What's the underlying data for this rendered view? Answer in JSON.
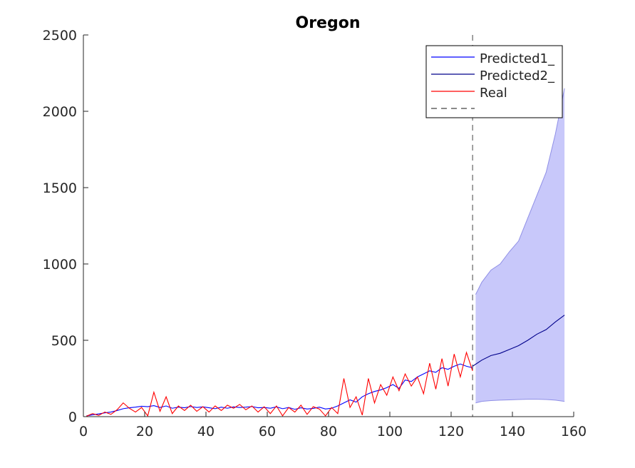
{
  "chart_data": {
    "type": "line",
    "title": "Oregon",
    "xlabel": "",
    "ylabel": "",
    "xlim": [
      0,
      160
    ],
    "ylim": [
      0,
      2500
    ],
    "xticks": [
      0,
      20,
      40,
      60,
      80,
      100,
      120,
      140,
      160
    ],
    "yticks": [
      0,
      500,
      1000,
      1500,
      2000,
      2500
    ],
    "grid": false,
    "legend_position": "top-right",
    "forecast_start_x": 127,
    "colors": {
      "predicted1": "#0000ff",
      "predicted2": "#00008b",
      "real": "#ff0000",
      "band_fill": "#c8c8fa",
      "band_edge": "#8f8fe6",
      "divider": "#444444"
    },
    "series": [
      {
        "name": "Predicted1_",
        "x": [
          1,
          3,
          5,
          7,
          9,
          11,
          13,
          15,
          17,
          19,
          21,
          23,
          25,
          27,
          29,
          31,
          33,
          35,
          37,
          39,
          41,
          43,
          45,
          47,
          49,
          51,
          53,
          55,
          57,
          59,
          61,
          63,
          65,
          67,
          69,
          71,
          73,
          75,
          77,
          79,
          81,
          83,
          85,
          87,
          89,
          91,
          93,
          95,
          97,
          99,
          101,
          103,
          105,
          107,
          109,
          111,
          113,
          115,
          117,
          119,
          121,
          123,
          125,
          127
        ],
        "y": [
          5,
          12,
          18,
          25,
          30,
          40,
          52,
          58,
          62,
          68,
          65,
          72,
          60,
          70,
          55,
          62,
          58,
          66,
          60,
          64,
          58,
          52,
          62,
          55,
          64,
          60,
          62,
          66,
          58,
          60,
          55,
          64,
          52,
          60,
          48,
          58,
          50,
          54,
          62,
          50,
          55,
          70,
          90,
          110,
          95,
          130,
          150,
          165,
          175,
          190,
          210,
          185,
          240,
          230,
          260,
          280,
          300,
          290,
          320,
          310,
          330,
          345,
          330,
          320
        ]
      },
      {
        "name": "Predicted2_",
        "x": [
          127,
          130,
          133,
          136,
          139,
          142,
          145,
          148,
          151,
          154,
          157
        ],
        "y": [
          330,
          370,
          400,
          415,
          440,
          465,
          500,
          540,
          570,
          620,
          665
        ]
      },
      {
        "name": "Real",
        "x": [
          1,
          3,
          5,
          7,
          9,
          11,
          13,
          15,
          17,
          19,
          21,
          23,
          25,
          27,
          29,
          31,
          33,
          35,
          37,
          39,
          41,
          43,
          45,
          47,
          49,
          51,
          53,
          55,
          57,
          59,
          61,
          63,
          65,
          67,
          69,
          71,
          73,
          75,
          77,
          79,
          81,
          83,
          85,
          87,
          89,
          91,
          93,
          95,
          97,
          99,
          101,
          103,
          105,
          107,
          109,
          111,
          113,
          115,
          117,
          119,
          121,
          123,
          125,
          127
        ],
        "y": [
          3,
          20,
          8,
          30,
          15,
          45,
          90,
          55,
          30,
          60,
          5,
          160,
          35,
          130,
          20,
          70,
          40,
          75,
          35,
          65,
          30,
          70,
          40,
          75,
          55,
          80,
          45,
          70,
          30,
          65,
          20,
          70,
          5,
          60,
          30,
          75,
          15,
          65,
          50,
          5,
          60,
          20,
          250,
          60,
          130,
          10,
          250,
          90,
          210,
          140,
          260,
          170,
          280,
          200,
          260,
          150,
          350,
          180,
          380,
          200,
          410,
          260,
          420,
          300
        ]
      }
    ],
    "band": {
      "x": [
        128,
        130,
        133,
        136,
        139,
        142,
        145,
        148,
        151,
        154,
        157
      ],
      "upper": [
        800,
        880,
        960,
        1000,
        1080,
        1150,
        1300,
        1450,
        1600,
        1850,
        2150
      ],
      "lower": [
        90,
        100,
        105,
        108,
        110,
        112,
        114,
        114,
        112,
        108,
        100
      ]
    },
    "legend": [
      "Predicted1_",
      "Predicted2_",
      "Real",
      ""
    ]
  }
}
